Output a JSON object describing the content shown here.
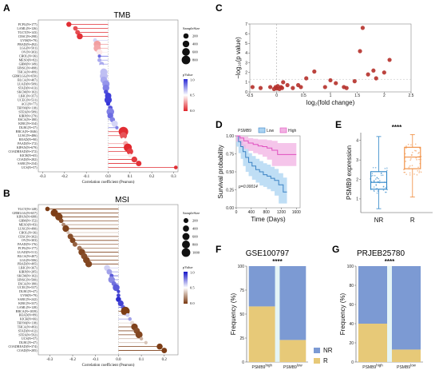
{
  "panels": {
    "A": {
      "label": "A",
      "title": "TMB"
    },
    "B": {
      "label": "B",
      "title": "MSI"
    },
    "C": {
      "label": "C"
    },
    "D": {
      "label": "D"
    },
    "E": {
      "label": "E"
    },
    "F": {
      "label": "F",
      "title": "GSE100797"
    },
    "G": {
      "label": "G",
      "title": "PRJEB25780"
    }
  },
  "chart_data": [
    {
      "panel": "A",
      "type": "scatter",
      "title": "TMB",
      "xlabel": "Correlation coefficient (Pearson)",
      "xlim": [
        -0.32,
        0.32
      ],
      "xticks": [
        -0.3,
        -0.2,
        -0.1,
        0.0,
        0.1,
        0.2,
        0.3
      ],
      "size_legend": {
        "title": "SampleSize",
        "values": [
          200,
          400,
          600,
          800
        ]
      },
      "color_legend": {
        "title": "pValue",
        "ticks": [
          "1.0",
          "0.5",
          "0.0"
        ],
        "low_color": "#2b2bd6",
        "mid_color": "#ffffff",
        "high_color": "#e0242a"
      },
      "categories": [
        "PCPG(N=177)",
        "LAML(N=126)",
        "TGCT(N=143)",
        "CESC(N=298)",
        "UVM(N=79)",
        "PRAD(N=492)",
        "LGG(N=501)",
        "OV(N=303)",
        "CHOL(N=36)",
        "MESO(N=82)",
        "GBM(N=149)",
        "HNSC(N=498)",
        "THCA(N=499)",
        "GBMLGG(N=650)",
        "BLCA(N=407)",
        "LUAD(N=509)",
        "STAD(N=413)",
        "SKCM(N=102)",
        "LIHC(N=357)",
        "UCEC(N=531)",
        "ACC(N=77)",
        "THYM(N=118)",
        "STES(N=589)",
        "KIRP(N=279)",
        "ESCA(N=180)",
        "KIRC(N=334)",
        "DLBC(N=37)",
        "BRCA(N=1046)",
        "LUSC(N=486)",
        "READ(N=90)",
        "PAAD(N=172)",
        "KIPAN(N=679)",
        "COADREAD(N=372)",
        "KICH(N=65)",
        "COAD(N=282)",
        "SARC(N=234)",
        "UCS(N=57)"
      ],
      "values": [
        -0.18,
        -0.15,
        -0.14,
        -0.13,
        -0.06,
        -0.05,
        -0.05,
        -0.04,
        -0.04,
        -0.04,
        -0.03,
        -0.03,
        -0.02,
        -0.02,
        -0.02,
        -0.01,
        -0.01,
        -0.01,
        0.0,
        0.0,
        0.0,
        0.01,
        0.01,
        0.01,
        0.02,
        0.03,
        0.04,
        0.07,
        0.07,
        0.07,
        0.08,
        0.09,
        0.1,
        0.1,
        0.12,
        0.14,
        0.31
      ],
      "sizes": [
        177,
        126,
        143,
        298,
        79,
        492,
        501,
        303,
        36,
        82,
        149,
        498,
        499,
        650,
        407,
        509,
        413,
        102,
        357,
        531,
        77,
        118,
        589,
        279,
        180,
        334,
        37,
        1046,
        486,
        90,
        172,
        679,
        372,
        65,
        282,
        234,
        57
      ],
      "pvalues": [
        0.02,
        0.1,
        0.09,
        0.03,
        0.6,
        0.28,
        0.3,
        0.45,
        0.85,
        0.7,
        0.7,
        0.5,
        0.65,
        0.65,
        0.7,
        0.75,
        0.8,
        0.92,
        0.95,
        0.95,
        0.98,
        0.9,
        0.8,
        0.85,
        0.8,
        0.6,
        0.8,
        0.02,
        0.11,
        0.5,
        0.3,
        0.01,
        0.06,
        0.45,
        0.05,
        0.03,
        0.02
      ]
    },
    {
      "panel": "B",
      "type": "scatter",
      "title": "MSI",
      "xlabel": "Correlation coefficient (Pearson)",
      "xlim": [
        -0.35,
        0.26
      ],
      "xticks": [
        -0.3,
        -0.2,
        -0.1,
        0.0,
        0.1,
        0.2
      ],
      "size_legend": {
        "title": "SampleSize",
        "values": [
          200,
          400,
          600,
          800,
          1000
        ]
      },
      "color_legend": {
        "title": "pValue",
        "ticks": [
          "1.0",
          "0.5",
          "0.0"
        ],
        "low_color": "#1414c8",
        "mid_color": "#ffffff",
        "high_color": "#7a3a12"
      },
      "categories": [
        "TGCT(N=148)",
        "GBMLGG(N=657)",
        "KIPAN(N=688)",
        "GBM(N=152)",
        "MESO(N=83)",
        "LUSC(N=490)",
        "CHOL(N=36)",
        "CESC(N=302)",
        "OV(N=303)",
        "PAAD(N=176)",
        "PCPG(N=177)",
        "LUAD(N=511)",
        "BLCA(N=407)",
        "LGG(N=506)",
        "PRAD(N=495)",
        "LIHC(N=367)",
        "KIRP(N=285)",
        "SKCM(N=102)",
        "HNSC(N=500)",
        "ESCA(N=180)",
        "UCEC(N=537)",
        "DLBC(N=47)",
        "UVM(N=79)",
        "SARC(N=242)",
        "KIRC(N=337)",
        "LAML(N=128)",
        "BRCA(N=1039)",
        "READ(N=89)",
        "KICH(N=66)",
        "THYM(N=118)",
        "THCA(N=493)",
        "STAD(N=412)",
        "STES(N=592)",
        "UCS(N=57)",
        "DLBC(N=47)",
        "COADREAD(N=374)",
        "COAD(N=285)"
      ],
      "values": [
        -0.31,
        -0.28,
        -0.26,
        -0.25,
        -0.24,
        -0.23,
        -0.22,
        -0.21,
        -0.2,
        -0.19,
        -0.17,
        -0.16,
        -0.15,
        -0.14,
        -0.13,
        -0.05,
        -0.04,
        -0.03,
        -0.03,
        -0.02,
        -0.01,
        0.0,
        0.0,
        0.0,
        0.01,
        0.02,
        0.03,
        0.04,
        0.05,
        0.06,
        0.07,
        0.08,
        0.09,
        0.1,
        0.12,
        0.18,
        0.2
      ],
      "sizes": [
        148,
        657,
        688,
        152,
        83,
        490,
        36,
        302,
        303,
        176,
        177,
        511,
        407,
        506,
        495,
        367,
        285,
        102,
        500,
        180,
        537,
        47,
        79,
        242,
        337,
        128,
        1039,
        89,
        66,
        118,
        493,
        412,
        592,
        57,
        47,
        374,
        285
      ],
      "pvalues": [
        0.01,
        0.01,
        0.02,
        0.05,
        0.2,
        0.02,
        0.35,
        0.05,
        0.03,
        0.1,
        0.15,
        0.03,
        0.05,
        0.03,
        0.03,
        0.6,
        0.7,
        0.85,
        0.75,
        0.8,
        0.85,
        0.9,
        0.9,
        0.95,
        0.9,
        0.85,
        0.01,
        0.6,
        0.7,
        0.4,
        0.02,
        0.05,
        0.03,
        0.3,
        0.35,
        0.01,
        0.01
      ]
    },
    {
      "panel": "C",
      "type": "scatter",
      "xlabel": "log₂(fold change)",
      "ylabel": "−log₁₀(p value)",
      "xlim": [
        -0.5,
        2.5
      ],
      "ylim": [
        0,
        7
      ],
      "xticks": [
        -0.5,
        0,
        0.5,
        1,
        1.5,
        2,
        2.5
      ],
      "yticks": [
        0,
        1,
        2,
        3,
        4,
        5,
        6,
        7
      ],
      "x": [
        -0.45,
        -0.3,
        -0.12,
        -0.05,
        -0.02,
        0.0,
        0.02,
        0.05,
        0.08,
        0.1,
        0.12,
        0.2,
        0.3,
        0.4,
        0.45,
        0.55,
        0.7,
        0.9,
        1.0,
        1.1,
        1.25,
        1.3,
        1.45,
        1.55,
        1.6,
        1.7,
        1.8,
        1.85,
        2.0,
        2.1
      ],
      "y": [
        0.5,
        0.4,
        0.5,
        0.3,
        0.5,
        0.35,
        0.6,
        0.3,
        0.5,
        0.4,
        1.0,
        0.7,
        0.4,
        0.7,
        0.5,
        1.4,
        2.1,
        0.5,
        1.2,
        0.9,
        0.5,
        0.4,
        1.1,
        4.2,
        6.6,
        1.8,
        2.2,
        1.4,
        2.0,
        3.3
      ]
    },
    {
      "panel": "D",
      "type": "line",
      "title": "PSMB9",
      "xlabel": "Time (Days)",
      "ylabel": "Survival probability",
      "xlim": [
        0,
        1700
      ],
      "ylim": [
        0,
        1.0
      ],
      "xticks": [
        0,
        400,
        800,
        1200,
        1600
      ],
      "yticks": [
        0.0,
        0.25,
        0.5,
        0.75,
        1.0
      ],
      "annotation": "p=0.00014",
      "series": [
        {
          "name": "Low",
          "color": "#3b82c4",
          "band": "#a9d3f2",
          "x": [
            0,
            60,
            120,
            180,
            250,
            330,
            420,
            520,
            620,
            720,
            820,
            920,
            1020,
            1130,
            1250,
            1350
          ],
          "y": [
            1.0,
            0.92,
            0.85,
            0.78,
            0.7,
            0.63,
            0.58,
            0.53,
            0.5,
            0.46,
            0.44,
            0.41,
            0.38,
            0.32,
            0.22,
            0.22
          ],
          "lower": [
            1.0,
            0.85,
            0.76,
            0.68,
            0.58,
            0.5,
            0.44,
            0.39,
            0.35,
            0.31,
            0.29,
            0.26,
            0.23,
            0.17,
            0.06,
            0.06
          ],
          "upper": [
            1.0,
            0.99,
            0.94,
            0.88,
            0.82,
            0.76,
            0.72,
            0.68,
            0.65,
            0.62,
            0.6,
            0.57,
            0.54,
            0.48,
            0.42,
            0.42
          ]
        },
        {
          "name": "High",
          "color": "#e04fbf",
          "band": "#f2b2e3",
          "x": [
            0,
            100,
            200,
            320,
            450,
            580,
            700,
            820,
            950,
            1100,
            1300,
            1500,
            1600
          ],
          "y": [
            1.0,
            0.97,
            0.93,
            0.9,
            0.88,
            0.86,
            0.85,
            0.83,
            0.8,
            0.74,
            0.74,
            0.74,
            0.74
          ],
          "lower": [
            1.0,
            0.92,
            0.86,
            0.82,
            0.79,
            0.76,
            0.74,
            0.71,
            0.67,
            0.58,
            0.58,
            0.58,
            0.58
          ],
          "upper": [
            1.0,
            1.0,
            0.99,
            0.97,
            0.96,
            0.95,
            0.95,
            0.94,
            0.93,
            0.9,
            0.9,
            0.9,
            0.9
          ]
        }
      ]
    },
    {
      "panel": "E",
      "type": "box",
      "ylabel": "PSMB9 expression",
      "significance": "****",
      "categories": [
        "NR",
        "R"
      ],
      "ylim": [
        0.3,
        4.4
      ],
      "yticks": [
        1,
        2,
        3,
        4
      ],
      "boxes": [
        {
          "name": "NR",
          "color": "#2f86c8",
          "min": 0.5,
          "q1": 1.5,
          "median": 1.85,
          "q3": 2.4,
          "max": 4.2
        },
        {
          "name": "R",
          "color": "#f08a3a",
          "min": 1.1,
          "q1": 2.55,
          "median": 3.15,
          "q3": 3.65,
          "max": 4.3
        }
      ]
    },
    {
      "panel": "F",
      "type": "bar",
      "title": "GSE100797",
      "ylabel": "Frequency (%)",
      "significance": "****",
      "categories": [
        "PSMB9^high",
        "PSMB9^low"
      ],
      "ylim": [
        0,
        100
      ],
      "yticks": [
        0,
        25,
        50,
        75,
        100
      ],
      "series": [
        {
          "name": "R",
          "color": "#e7c978",
          "values": [
            58,
            23
          ]
        },
        {
          "name": "NR",
          "color": "#7c9ad3",
          "values": [
            42,
            77
          ]
        }
      ]
    },
    {
      "panel": "G",
      "type": "bar",
      "title": "PRJEB25780",
      "ylabel": "Frequency (%)",
      "significance": "****",
      "categories": [
        "PSMB9^high",
        "PSMB9^low"
      ],
      "ylim": [
        0,
        100
      ],
      "yticks": [
        0,
        20,
        40,
        60,
        80,
        100
      ],
      "series": [
        {
          "name": "R",
          "color": "#e7c978",
          "values": [
            40,
            13
          ]
        },
        {
          "name": "NR",
          "color": "#7c9ad3",
          "values": [
            60,
            87
          ]
        }
      ]
    }
  ]
}
